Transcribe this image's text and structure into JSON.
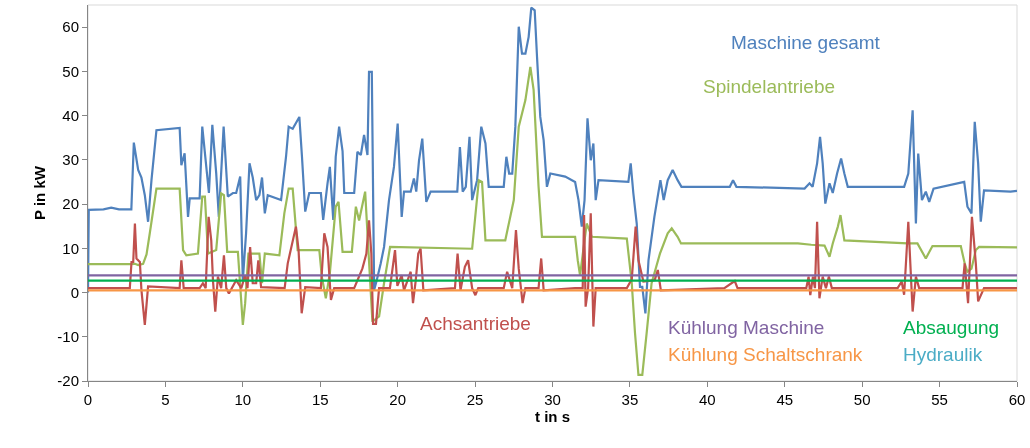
{
  "chart_data": {
    "type": "line",
    "xlabel": "t in s",
    "ylabel": "P in kW",
    "xlim": [
      0,
      60
    ],
    "ylim": [
      -20,
      65
    ],
    "xticks": [
      0,
      5,
      10,
      15,
      20,
      25,
      30,
      35,
      40,
      45,
      50,
      55,
      60
    ],
    "yticks": [
      -20,
      -10,
      0,
      10,
      20,
      30,
      40,
      50,
      60
    ],
    "grid": false,
    "legend": false,
    "marker": "none",
    "line_style": "solid",
    "series": [
      {
        "name": "Maschine gesamt",
        "color": "#4f81bd",
        "x": [
          0,
          0.05,
          1.0,
          1.5,
          2.0,
          2.8,
          2.96,
          3.24,
          3.45,
          3.67,
          3.88,
          4.1,
          4.42,
          5.92,
          6.03,
          6.24,
          6.46,
          6.57,
          7.21,
          7.38,
          7.81,
          8.03,
          8.28,
          8.45,
          8.76,
          9.03,
          9.36,
          9.57,
          9.83,
          10.0,
          10.21,
          10.43,
          10.64,
          10.86,
          11.07,
          11.24,
          11.42,
          11.61,
          12.47,
          12.79,
          12.96,
          13.22,
          13.65,
          13.82,
          14.03,
          14.29,
          15.04,
          15.19,
          15.47,
          15.62,
          15.84,
          16.0,
          16.22,
          16.44,
          16.55,
          17.19,
          17.4,
          17.62,
          17.83,
          18.05,
          18.15,
          18.33,
          18.48,
          18.65,
          18.9,
          19.12,
          19.44,
          19.76,
          20.0,
          20.26,
          20.41,
          20.84,
          21.05,
          21.2,
          21.38,
          21.59,
          21.85,
          22.13,
          23.85,
          24.02,
          24.2,
          24.4,
          24.64,
          24.81,
          25.13,
          25.4,
          25.67,
          25.88,
          26.85,
          27.02,
          27.2,
          27.4,
          27.6,
          27.82,
          28.03,
          28.25,
          28.46,
          28.63,
          28.85,
          29.0,
          29.21,
          29.43,
          29.64,
          29.86,
          30.82,
          31.46,
          31.68,
          31.89,
          32.07,
          32.26,
          32.47,
          32.64,
          32.79,
          32.97,
          34.9,
          35.05,
          35.22,
          35.44,
          35.65,
          35.8,
          36.0,
          36.2,
          36.58,
          36.97,
          37.18,
          37.44,
          37.76,
          38.08,
          38.33,
          41.45,
          41.66,
          41.88,
          46.28,
          46.6,
          46.8,
          47.09,
          47.28,
          47.45,
          47.62,
          47.89,
          48.1,
          48.38,
          48.64,
          48.85,
          49.07,
          52.71,
          52.98,
          53.26,
          53.47,
          53.62,
          53.86,
          54.11,
          54.33,
          54.61,
          56.59,
          56.8,
          57.06,
          57.27,
          57.49,
          57.66,
          57.87,
          59.58,
          60
        ],
        "values": [
          0,
          18.7,
          18.8,
          19.2,
          18.8,
          18.8,
          33.9,
          27.7,
          26,
          22,
          16,
          25.4,
          36.7,
          37.2,
          28.8,
          31.5,
          17.1,
          21.3,
          21.3,
          37.5,
          22.5,
          37.9,
          27,
          17.1,
          37.5,
          21.7,
          22.5,
          22.5,
          26.2,
          2.8,
          13.4,
          29.2,
          26,
          20.9,
          22,
          26,
          17.9,
          22,
          20.9,
          30.7,
          37.5,
          37,
          39.7,
          30.7,
          18.3,
          22.5,
          22.5,
          16.4,
          24.7,
          28.4,
          16.4,
          30.7,
          37.5,
          32,
          22.5,
          22.5,
          31.8,
          31.1,
          35.6,
          31.1,
          49.9,
          49.9,
          0.6,
          2.8,
          6.5,
          10.3,
          20.9,
          28.4,
          38.2,
          17.1,
          22.8,
          22.8,
          25.8,
          22.8,
          29.9,
          34.8,
          20.5,
          22.8,
          22.8,
          32.9,
          22.8,
          23.9,
          35.2,
          20.9,
          25.4,
          37.5,
          33.7,
          23.9,
          23.9,
          30.7,
          26.9,
          26.9,
          37.5,
          60.1,
          54,
          54,
          57.8,
          64.4,
          63.8,
          53.3,
          39.7,
          34.4,
          23.9,
          26.9,
          26.2,
          25,
          20.9,
          14.9,
          20.9,
          39.4,
          29.9,
          33.7,
          20.9,
          25.4,
          25,
          29.2,
          22.5,
          15.6,
          1.3,
          1.3,
          -4.7,
          7.3,
          17.1,
          25.4,
          20.9,
          25.4,
          27.7,
          25.4,
          23.9,
          23.9,
          25.4,
          23.9,
          23.5,
          24.7,
          23.9,
          29.2,
          35.2,
          29.2,
          20.1,
          24.7,
          22.5,
          26.9,
          30.3,
          26.9,
          23.9,
          23.9,
          26.9,
          41.2,
          15.6,
          31.4,
          20.9,
          22.8,
          20.5,
          23.5,
          25,
          19.4,
          17.9,
          38.6,
          29.2,
          16,
          23.1,
          22.8,
          23
        ]
      },
      {
        "name": "Spindelantriebe",
        "color": "#9bbb59",
        "x": [
          0,
          2.7,
          3.03,
          3.24,
          3.56,
          3.78,
          3.99,
          4.42,
          5.92,
          6.14,
          6.35,
          7.1,
          7.38,
          7.55,
          7.75,
          8.28,
          8.6,
          8.78,
          8.99,
          9.68,
          9.79,
          10.0,
          10.15,
          10.36,
          11.07,
          11.24,
          11.42,
          12.36,
          12.68,
          12.96,
          13.22,
          13.54,
          14.94,
          15.1,
          15.36,
          15.62,
          16.0,
          16.18,
          16.44,
          17.04,
          17.3,
          17.51,
          17.9,
          18.11,
          18.37,
          18.8,
          19.12,
          19.51,
          24.81,
          25.24,
          25.45,
          25.67,
          26.95,
          27.5,
          27.82,
          28.25,
          28.57,
          28.78,
          29.1,
          29.32,
          31.46,
          31.63,
          31.78,
          32.21,
          32.54,
          34.8,
          35.12,
          35.33,
          35.55,
          35.8,
          36.08,
          36.4,
          36.94,
          37.44,
          37.7,
          38.08,
          38.3,
          45.85,
          46.71,
          47.57,
          47.89,
          48.1,
          48.43,
          48.6,
          48.85,
          52.93,
          53.57,
          54.11,
          54.54,
          56.37,
          56.62,
          56.8,
          57.06,
          57.34,
          57.55,
          60
        ],
        "values": [
          6.4,
          6.4,
          6.5,
          6.2,
          6.5,
          8.6,
          13.4,
          23.5,
          23.5,
          9.6,
          8.4,
          8.8,
          21.7,
          21.7,
          8.8,
          9.6,
          22.4,
          22,
          9.2,
          9.2,
          3.6,
          -7.3,
          -2.4,
          8.8,
          8.8,
          2.1,
          8.8,
          8.4,
          17.9,
          23.5,
          23.5,
          9.6,
          9.6,
          3.6,
          -1.3,
          4.4,
          19.4,
          20.5,
          9.2,
          9.2,
          19.4,
          16.3,
          22.8,
          9.6,
          -6.6,
          -5.4,
          2.1,
          10.3,
          9.9,
          25.4,
          25,
          11.8,
          11.8,
          20.9,
          37.5,
          43.5,
          51,
          45.8,
          23.9,
          12.6,
          12.6,
          7.3,
          3.9,
          15.6,
          12.6,
          12.2,
          2.1,
          -9.2,
          -18.6,
          -18.6,
          -9.2,
          2.1,
          8.8,
          13.4,
          14.5,
          12.6,
          11.1,
          11.1,
          10.8,
          10.6,
          8.1,
          11.1,
          14.9,
          17.5,
          11.8,
          11.1,
          11.1,
          7.7,
          10.5,
          10.5,
          6.6,
          4.7,
          5.4,
          9.6,
          10.3,
          10.2
        ]
      },
      {
        "name": "Achsantriebe",
        "color": "#c0504d",
        "x": [
          0,
          2.7,
          2.81,
          2.92,
          3.03,
          3.13,
          3.35,
          3.45,
          3.67,
          3.88,
          5.92,
          6.03,
          6.18,
          7.21,
          7.42,
          7.6,
          7.79,
          7.96,
          8.07,
          8.22,
          8.39,
          8.6,
          8.78,
          8.93,
          9.1,
          9.57,
          9.9,
          10.15,
          10.3,
          10.47,
          10.64,
          10.86,
          11.0,
          11.18,
          12.7,
          12.9,
          13.43,
          13.6,
          13.8,
          14.03,
          15.04,
          15.26,
          15.47,
          15.69,
          15.9,
          17.19,
          17.72,
          17.98,
          18.15,
          18.3,
          18.41,
          18.6,
          18.8,
          19.5,
          19.83,
          19.98,
          20.26,
          20.41,
          20.84,
          20.99,
          21.16,
          21.33,
          21.48,
          21.66,
          23.7,
          23.87,
          24.06,
          24.34,
          24.55,
          24.81,
          25.02,
          25.2,
          26.85,
          27.07,
          27.4,
          27.64,
          27.82,
          28.07,
          28.25,
          29.1,
          29.27,
          29.43,
          31.46,
          31.95,
          32.04,
          32.14,
          32.3,
          32.47,
          32.64,
          32.79,
          34.8,
          35.12,
          35.37,
          35.55,
          35.87,
          36.6,
          36.8,
          37.0,
          41.1,
          41.77,
          41.95,
          46.39,
          46.54,
          46.65,
          46.82,
          46.95,
          47.09,
          47.24,
          47.45,
          47.66,
          47.85,
          48.04,
          52.29,
          52.55,
          52.71,
          52.98,
          53.26,
          53.47,
          53.68,
          56.48,
          56.62,
          56.84,
          57.09,
          57.34,
          57.49,
          57.87,
          60
        ],
        "values": [
          1,
          1,
          6.9,
          6.9,
          15.6,
          7.7,
          6.9,
          0.6,
          -7.3,
          1.4,
          1,
          7.3,
          1,
          1,
          2.1,
          1,
          17.1,
          11.8,
          2.8,
          -4.3,
          3.6,
          1,
          8.4,
          1,
          -0.2,
          2.8,
          1,
          3.9,
          1,
          10.3,
          2.1,
          2.1,
          7.3,
          1.2,
          1,
          6.6,
          14.9,
          9.6,
          -4.7,
          1.2,
          1,
          13.4,
          10.3,
          -1.7,
          1,
          1,
          5.4,
          8.8,
          16.3,
          8.8,
          -7.1,
          -7.1,
          1,
          1,
          9.6,
          1.5,
          3.9,
          0.5,
          4.7,
          -2.4,
          2.5,
          8.8,
          9.9,
          0.5,
          1,
          8.8,
          0.5,
          5.8,
          7.3,
          1,
          -0.6,
          1,
          1,
          4.7,
          1,
          14.1,
          5.4,
          -2.4,
          1,
          1,
          7.7,
          0.5,
          1,
          1,
          17.5,
          -3.2,
          1,
          17.9,
          -7.7,
          1,
          1,
          3,
          14.9,
          7.3,
          2.5,
          2.8,
          5.1,
          0.5,
          1,
          2.6,
          1,
          1,
          3.6,
          -0.6,
          3.6,
          1,
          16,
          -1.3,
          3.6,
          1,
          3.6,
          1,
          1,
          2.5,
          -0.5,
          16,
          -4.3,
          3.6,
          1,
          1,
          6.6,
          -2.4,
          17.1,
          6.6,
          -2,
          1,
          1
        ]
      },
      {
        "name": "Kühlung Maschine",
        "color": "#8064a2",
        "x": [
          0,
          60
        ],
        "values": [
          3.9,
          3.9
        ]
      },
      {
        "name": "Absaugung",
        "color": "#00b050",
        "x": [
          0,
          60
        ],
        "values": [
          2.7,
          2.7
        ]
      },
      {
        "name": "Kühlung Schaltschrank",
        "color": "#f79646",
        "x": [
          0,
          60
        ],
        "values": [
          0.5,
          0.5
        ]
      },
      {
        "name": "Hydraulik",
        "color": "#4bacc6"
      }
    ]
  }
}
